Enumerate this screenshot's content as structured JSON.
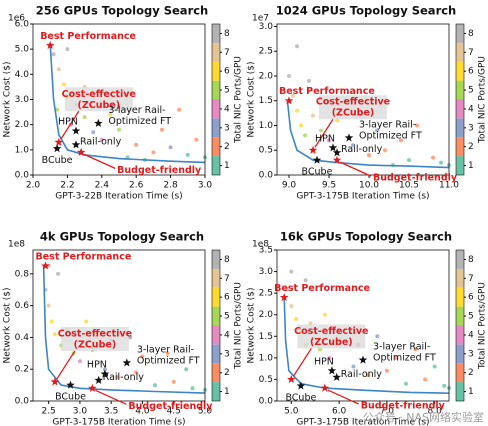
{
  "chart_data": [
    {
      "type": "scatter",
      "title": "256 GPUs Topology Search",
      "xlabel": "GPT-3-22B Iteration Time (s)",
      "ylabel": "Network Cost ($)",
      "y_multiplier": "1e6",
      "colorbar_label": "Total NIC Ports/GPU",
      "clim": [
        0.5,
        8.5
      ],
      "cticks": [
        1,
        2,
        3,
        4,
        5,
        6,
        7,
        8
      ],
      "colors": [
        "#66c2a5",
        "#fc8d62",
        "#8da0cb",
        "#e78ac3",
        "#a6d854",
        "#ffd92f",
        "#e5c494",
        "#b3b3b3"
      ],
      "xlim": [
        2.0,
        3.0
      ],
      "xticks": [
        {
          "value": 2.0,
          "label": "2.0"
        },
        {
          "value": 2.2,
          "label": "2.2"
        },
        {
          "value": 2.4,
          "label": "2.4"
        },
        {
          "value": 2.6,
          "label": "2.6"
        },
        {
          "value": 2.8,
          "label": "2.8"
        },
        {
          "value": 3.0,
          "label": "3.0"
        }
      ],
      "ylim": [
        0,
        6.0
      ],
      "yticks": [
        {
          "value": 0,
          "label": "0.0"
        },
        {
          "value": 1,
          "label": "1.0"
        },
        {
          "value": 2,
          "label": "2.0"
        },
        {
          "value": 3,
          "label": "3.0"
        },
        {
          "value": 4,
          "label": "4.0"
        },
        {
          "value": 5,
          "label": "5.0"
        },
        {
          "value": 6,
          "label": "6.0"
        }
      ],
      "points": {
        "x": [
          2.12,
          2.15,
          2.18,
          2.2,
          2.14,
          2.25,
          2.3,
          2.22,
          2.35,
          2.4,
          2.5,
          2.6,
          2.7,
          2.8,
          2.9,
          2.95,
          2.55,
          2.65,
          2.45,
          2.3,
          2.2,
          2.85,
          2.75,
          3.0
        ],
        "y": [
          4.8,
          4.2,
          3.6,
          3.1,
          2.6,
          2.8,
          2.3,
          2.0,
          1.7,
          1.4,
          1.8,
          1.2,
          0.9,
          1.1,
          0.8,
          1.4,
          0.7,
          0.6,
          2.4,
          3.5,
          5.0,
          2.6,
          1.8,
          0.7
        ],
        "c": [
          8,
          7,
          6,
          6,
          5,
          7,
          5,
          4,
          3,
          4,
          5,
          2,
          2,
          3,
          1,
          2,
          1,
          1,
          6,
          7,
          8,
          2,
          2,
          1
        ]
      },
      "frontier": {
        "color": "#3b86c6",
        "x": [
          2.1,
          2.12,
          2.15,
          2.2,
          2.3,
          2.5,
          2.8,
          3.0
        ],
        "y": [
          5.2,
          3.0,
          1.6,
          1.0,
          0.8,
          0.65,
          0.55,
          0.5
        ]
      },
      "annotations": [
        {
          "lines": [
            "Best Performance"
          ],
          "color": "#e31a1c",
          "x": 2.1,
          "y": 5.15
        },
        {
          "lines": [
            "Cost-effective",
            "(ZCube)"
          ],
          "color": "#e31a1c",
          "x": 2.15,
          "y": 1.3
        },
        {
          "lines": [
            "HPN"
          ],
          "color": "#111111",
          "x": 2.25,
          "y": 1.75
        },
        {
          "lines": [
            "3-layer Rail-",
            "Optimized FT"
          ],
          "color": "#111111",
          "x": 2.38,
          "y": 2.05
        },
        {
          "lines": [
            "Rail-only"
          ],
          "color": "#111111",
          "x": 2.25,
          "y": 1.2
        },
        {
          "lines": [
            "BCube"
          ],
          "color": "#111111",
          "x": 2.14,
          "y": 1.05
        },
        {
          "lines": [
            "Budget-friendly"
          ],
          "color": "#e31a1c",
          "x": 2.28,
          "y": 0.9
        }
      ]
    },
    {
      "type": "scatter",
      "title": "1024 GPUs Topology Search",
      "xlabel": "GPT-3-175B Iteration Time (s)",
      "ylabel": "Network Cost ($)",
      "y_multiplier": "1e7",
      "colorbar_label": "Total NIC Ports/GPU",
      "clim": [
        0.5,
        8.5
      ],
      "cticks": [
        1,
        2,
        3,
        4,
        5,
        6,
        7,
        8
      ],
      "colors": [
        "#66c2a5",
        "#fc8d62",
        "#8da0cb",
        "#e78ac3",
        "#a6d854",
        "#ffd92f",
        "#e5c494",
        "#b3b3b3"
      ],
      "xlim": [
        8.85,
        11.0
      ],
      "xticks": [
        {
          "value": 9.0,
          "label": "9.0"
        },
        {
          "value": 9.5,
          "label": "9.5"
        },
        {
          "value": 10.0,
          "label": "10.0"
        },
        {
          "value": 10.5,
          "label": "10.5"
        },
        {
          "value": 11.0,
          "label": "11.0"
        }
      ],
      "ylim": [
        0,
        3.05
      ],
      "yticks": [
        {
          "value": 0,
          "label": "0.0"
        },
        {
          "value": 0.5,
          "label": "0.5"
        },
        {
          "value": 1,
          "label": "1.0"
        },
        {
          "value": 1.5,
          "label": "1.5"
        },
        {
          "value": 2,
          "label": "2.0"
        },
        {
          "value": 2.5,
          "label": "2.5"
        },
        {
          "value": 3,
          "label": "3.0"
        }
      ],
      "points": {
        "x": [
          9.0,
          9.05,
          9.1,
          9.15,
          9.2,
          9.3,
          9.4,
          9.5,
          9.6,
          9.8,
          10.0,
          10.2,
          10.5,
          10.8,
          10.9,
          9.7,
          10.1,
          10.4,
          9.25,
          9.9,
          10.6,
          9.1,
          10.3,
          11.0
        ],
        "y": [
          2.0,
          1.6,
          1.3,
          1.0,
          0.8,
          1.2,
          0.9,
          0.7,
          1.1,
          0.6,
          0.4,
          0.5,
          0.3,
          0.35,
          0.25,
          1.5,
          0.9,
          0.7,
          1.9,
          1.2,
          1.0,
          2.6,
          0.2,
          0.2
        ],
        "c": [
          8,
          7,
          6,
          6,
          5,
          7,
          5,
          4,
          6,
          3,
          2,
          2,
          1,
          2,
          1,
          5,
          3,
          2,
          8,
          4,
          2,
          8,
          1,
          1
        ]
      },
      "frontier": {
        "color": "#3b86c6",
        "x": [
          8.98,
          9.02,
          9.1,
          9.3,
          9.6,
          10.0,
          10.5,
          11.0
        ],
        "y": [
          1.5,
          0.9,
          0.5,
          0.3,
          0.25,
          0.2,
          0.18,
          0.15
        ]
      },
      "annotations": [
        {
          "lines": [
            "Best Performance"
          ],
          "color": "#e31a1c",
          "x": 9.0,
          "y": 1.5
        },
        {
          "lines": [
            "Cost-effective",
            "(ZCube)"
          ],
          "color": "#e31a1c",
          "x": 9.3,
          "y": 0.5
        },
        {
          "lines": [
            "HPN"
          ],
          "color": "#111111",
          "x": 9.55,
          "y": 0.55
        },
        {
          "lines": [
            "3-layer Rail-",
            "Optimized FT"
          ],
          "color": "#111111",
          "x": 9.75,
          "y": 0.75
        },
        {
          "lines": [
            "Rail-only"
          ],
          "color": "#111111",
          "x": 9.6,
          "y": 0.45
        },
        {
          "lines": [
            "BCube"
          ],
          "color": "#111111",
          "x": 9.35,
          "y": 0.3
        },
        {
          "lines": [
            "Budget-friendly"
          ],
          "color": "#e31a1c",
          "x": 9.6,
          "y": 0.3
        }
      ]
    },
    {
      "type": "scatter",
      "title": "4k GPUs Topology Search",
      "xlabel": "GPT-3-175B Iteration Time (s)",
      "ylabel": "Network Cost ($)",
      "y_multiplier": "1e8",
      "colorbar_label": "Total NIC Ports/GPU",
      "clim": [
        0.5,
        8.5
      ],
      "cticks": [
        1,
        2,
        3,
        4,
        5,
        6,
        7,
        8
      ],
      "colors": [
        "#66c2a5",
        "#fc8d62",
        "#8da0cb",
        "#e78ac3",
        "#a6d854",
        "#ffd92f",
        "#e5c494",
        "#b3b3b3"
      ],
      "xlim": [
        2.25,
        5.0
      ],
      "xticks": [
        {
          "value": 2.5,
          "label": "2.5"
        },
        {
          "value": 3.0,
          "label": "3.0"
        },
        {
          "value": 3.5,
          "label": "3.5"
        },
        {
          "value": 4.0,
          "label": "4.0"
        },
        {
          "value": 4.5,
          "label": "4.5"
        },
        {
          "value": 5.0,
          "label": "5.0"
        }
      ],
      "ylim": [
        0,
        0.95
      ],
      "yticks": [
        {
          "value": 0,
          "label": "0.0"
        },
        {
          "value": 0.2,
          "label": "0.2"
        },
        {
          "value": 0.4,
          "label": "0.4"
        },
        {
          "value": 0.6,
          "label": "0.6"
        },
        {
          "value": 0.8,
          "label": "0.8"
        }
      ],
      "points": {
        "x": [
          2.45,
          2.5,
          2.55,
          2.6,
          2.7,
          2.8,
          2.9,
          3.0,
          3.2,
          3.4,
          3.6,
          3.9,
          4.2,
          4.5,
          4.8,
          3.1,
          3.5,
          4.0,
          2.65,
          3.8,
          4.4,
          2.5,
          4.7,
          5.0
        ],
        "y": [
          0.7,
          0.6,
          0.5,
          0.42,
          0.35,
          0.45,
          0.3,
          0.25,
          0.32,
          0.2,
          0.15,
          0.18,
          0.1,
          0.12,
          0.08,
          0.5,
          0.38,
          0.28,
          0.8,
          0.4,
          0.3,
          0.85,
          0.2,
          0.07
        ],
        "c": [
          8,
          7,
          6,
          6,
          5,
          7,
          5,
          4,
          5,
          3,
          2,
          2,
          1,
          2,
          1,
          6,
          4,
          2,
          8,
          3,
          2,
          8,
          1,
          1
        ]
      },
      "frontier": {
        "color": "#3b86c6",
        "x": [
          2.42,
          2.45,
          2.5,
          2.7,
          3.0,
          3.5,
          4.2,
          5.0
        ],
        "y": [
          0.85,
          0.4,
          0.2,
          0.1,
          0.08,
          0.07,
          0.06,
          0.05
        ]
      },
      "annotations": [
        {
          "lines": [
            "Best Performance"
          ],
          "color": "#e31a1c",
          "x": 2.45,
          "y": 0.85
        },
        {
          "lines": [
            "Cost-effective",
            "(ZCube)"
          ],
          "color": "#e31a1c",
          "x": 2.6,
          "y": 0.12
        },
        {
          "lines": [
            "HPN"
          ],
          "color": "#111111",
          "x": 3.4,
          "y": 0.17
        },
        {
          "lines": [
            "3-layer Rail-",
            "Optimized FT"
          ],
          "color": "#111111",
          "x": 3.75,
          "y": 0.24
        },
        {
          "lines": [
            "Rail-only"
          ],
          "color": "#111111",
          "x": 3.3,
          "y": 0.13
        },
        {
          "lines": [
            "BCube"
          ],
          "color": "#111111",
          "x": 2.85,
          "y": 0.1
        },
        {
          "lines": [
            "Budget-friendly"
          ],
          "color": "#e31a1c",
          "x": 3.2,
          "y": 0.08
        }
      ]
    },
    {
      "type": "scatter",
      "title": "16k GPUs Topology Search",
      "xlabel": "GPT-3-175B Iteration Time (s)",
      "ylabel": "Network Cost ($)",
      "y_multiplier": "1e8",
      "colorbar_label": "Total NIC Ports/GPU",
      "clim": [
        0.5,
        8.5
      ],
      "cticks": [
        1,
        2,
        3,
        4,
        5,
        6,
        7,
        8
      ],
      "colors": [
        "#66c2a5",
        "#fc8d62",
        "#8da0cb",
        "#e78ac3",
        "#a6d854",
        "#ffd92f",
        "#e5c494",
        "#b3b3b3"
      ],
      "xlim": [
        4.7,
        8.3
      ],
      "xticks": [
        {
          "value": 5.0,
          "label": "5.0"
        },
        {
          "value": 6.0,
          "label": "6.0"
        },
        {
          "value": 7.0,
          "label": "7.0"
        },
        {
          "value": 8.0,
          "label": "8.0"
        }
      ],
      "ylim": [
        0,
        3.5
      ],
      "yticks": [
        {
          "value": 0,
          "label": "0.0"
        },
        {
          "value": 0.5,
          "label": "0.5"
        },
        {
          "value": 1,
          "label": "1.0"
        },
        {
          "value": 1.5,
          "label": "1.5"
        },
        {
          "value": 2,
          "label": "2.0"
        },
        {
          "value": 2.5,
          "label": "2.5"
        },
        {
          "value": 3,
          "label": "3.0"
        },
        {
          "value": 3.5,
          "label": "3.5"
        }
      ],
      "points": {
        "x": [
          4.9,
          5.0,
          5.1,
          5.2,
          5.3,
          5.4,
          5.6,
          5.8,
          6.0,
          6.3,
          6.6,
          7.0,
          7.4,
          7.8,
          8.2,
          5.7,
          6.4,
          7.2,
          5.3,
          6.8,
          7.6,
          5.0,
          8.0,
          8.3
        ],
        "y": [
          2.6,
          2.2,
          1.9,
          1.6,
          1.3,
          1.8,
          1.2,
          1.0,
          1.4,
          0.8,
          0.6,
          0.7,
          0.4,
          0.5,
          0.35,
          2.0,
          1.3,
          1.0,
          2.8,
          1.5,
          1.2,
          3.0,
          0.8,
          0.3
        ],
        "c": [
          8,
          7,
          6,
          6,
          5,
          7,
          5,
          4,
          5,
          3,
          2,
          2,
          1,
          2,
          1,
          6,
          4,
          2,
          8,
          3,
          2,
          8,
          1,
          1
        ]
      },
      "frontier": {
        "color": "#3b86c6",
        "x": [
          4.85,
          4.88,
          4.95,
          5.2,
          5.7,
          6.5,
          7.5,
          8.3
        ],
        "y": [
          2.4,
          1.4,
          0.7,
          0.4,
          0.3,
          0.25,
          0.2,
          0.18
        ]
      },
      "annotations": [
        {
          "lines": [
            "Best Performance"
          ],
          "color": "#e31a1c",
          "x": 4.85,
          "y": 2.4
        },
        {
          "lines": [
            "Cost-effective",
            "(ZCube)"
          ],
          "color": "#e31a1c",
          "x": 5.0,
          "y": 0.5
        },
        {
          "lines": [
            "HPN"
          ],
          "color": "#111111",
          "x": 5.85,
          "y": 0.7
        },
        {
          "lines": [
            "3-layer Rail-",
            "Optimized FT"
          ],
          "color": "#111111",
          "x": 6.5,
          "y": 0.95
        },
        {
          "lines": [
            "Rail-only"
          ],
          "color": "#111111",
          "x": 5.95,
          "y": 0.55
        },
        {
          "lines": [
            "BCube"
          ],
          "color": "#111111",
          "x": 5.2,
          "y": 0.35
        },
        {
          "lines": [
            "Budget-friendly"
          ],
          "color": "#e31a1c",
          "x": 5.7,
          "y": 0.3
        }
      ]
    }
  ],
  "watermark": "公众号 · NAS网络实验室"
}
